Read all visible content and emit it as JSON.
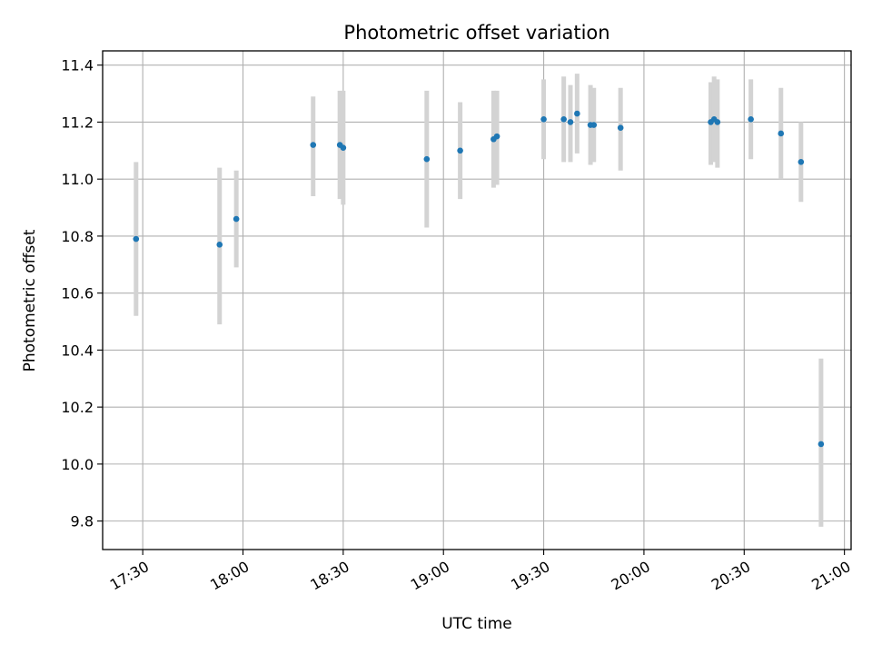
{
  "chart_data": {
    "type": "scatter",
    "title": "Photometric offset variation",
    "xlabel": "UTC time",
    "ylabel": "Photometric offset",
    "xlim": [
      "17:18",
      "21:02"
    ],
    "ylim": [
      9.7,
      11.45
    ],
    "x_ticks": [
      "17:30",
      "18:00",
      "18:30",
      "19:00",
      "19:30",
      "20:00",
      "20:30",
      "21:00"
    ],
    "y_ticks": [
      "9.8",
      "10.0",
      "10.2",
      "10.4",
      "10.6",
      "10.8",
      "11.0",
      "11.2",
      "11.4"
    ],
    "grid": true,
    "marker_color": "#1f77b4",
    "errorbar_color": "#d3d3d3",
    "points": [
      {
        "x": "17:28",
        "y": 10.79,
        "lo": 10.52,
        "hi": 11.06
      },
      {
        "x": "17:53",
        "y": 10.77,
        "lo": 10.49,
        "hi": 11.04
      },
      {
        "x": "17:58",
        "y": 10.86,
        "lo": 10.69,
        "hi": 11.03
      },
      {
        "x": "18:21",
        "y": 11.12,
        "lo": 10.94,
        "hi": 11.29
      },
      {
        "x": "18:29",
        "y": 11.12,
        "lo": 10.93,
        "hi": 11.31
      },
      {
        "x": "18:30",
        "y": 11.11,
        "lo": 10.91,
        "hi": 11.31
      },
      {
        "x": "18:55",
        "y": 11.07,
        "lo": 10.83,
        "hi": 11.31
      },
      {
        "x": "19:05",
        "y": 11.1,
        "lo": 10.93,
        "hi": 11.27
      },
      {
        "x": "19:15",
        "y": 11.14,
        "lo": 10.97,
        "hi": 11.31
      },
      {
        "x": "19:16",
        "y": 11.15,
        "lo": 10.98,
        "hi": 11.31
      },
      {
        "x": "19:30",
        "y": 11.21,
        "lo": 11.07,
        "hi": 11.35
      },
      {
        "x": "19:36",
        "y": 11.21,
        "lo": 11.06,
        "hi": 11.36
      },
      {
        "x": "19:38",
        "y": 11.2,
        "lo": 11.06,
        "hi": 11.33
      },
      {
        "x": "19:40",
        "y": 11.23,
        "lo": 11.09,
        "hi": 11.37
      },
      {
        "x": "19:44",
        "y": 11.19,
        "lo": 11.05,
        "hi": 11.33
      },
      {
        "x": "19:45",
        "y": 11.19,
        "lo": 11.06,
        "hi": 11.32
      },
      {
        "x": "19:53",
        "y": 11.18,
        "lo": 11.03,
        "hi": 11.32
      },
      {
        "x": "20:20",
        "y": 11.2,
        "lo": 11.05,
        "hi": 11.34
      },
      {
        "x": "20:21",
        "y": 11.21,
        "lo": 11.06,
        "hi": 11.36
      },
      {
        "x": "20:22",
        "y": 11.2,
        "lo": 11.04,
        "hi": 11.35
      },
      {
        "x": "20:32",
        "y": 11.21,
        "lo": 11.07,
        "hi": 11.35
      },
      {
        "x": "20:41",
        "y": 11.16,
        "lo": 11.0,
        "hi": 11.32
      },
      {
        "x": "20:47",
        "y": 11.06,
        "lo": 10.92,
        "hi": 11.2
      },
      {
        "x": "20:53",
        "y": 10.07,
        "lo": 9.78,
        "hi": 10.37
      }
    ]
  }
}
